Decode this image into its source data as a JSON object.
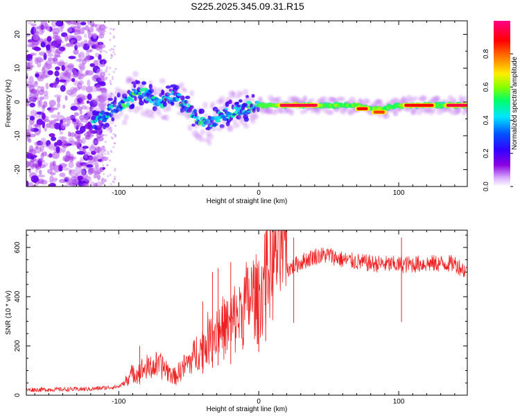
{
  "title": "S225.2025.345.09.31.R15",
  "chart_data": [
    {
      "type": "heatmap",
      "name": "spectrogram",
      "xlabel": "Height of straight line (km)",
      "ylabel": "Frequency (Hz)",
      "xlim": [
        -166,
        149
      ],
      "ylim": [
        -25,
        24
      ],
      "xticks": [
        -100,
        0,
        100
      ],
      "yticks": [
        -20,
        -10,
        0,
        10,
        20
      ],
      "colorbar": {
        "label": "Normalized spectral amplitude",
        "range": [
          0.0,
          1.0
        ],
        "ticks": [
          0.0,
          0.2,
          0.4,
          0.6,
          0.8
        ],
        "colormap": [
          "#ffffff",
          "#8a00e0",
          "#3300ff",
          "#0044ff",
          "#00e5ff",
          "#00ff66",
          "#aaff00",
          "#ffee00",
          "#ff7a00",
          "#ff0000",
          "#ff0088"
        ]
      },
      "ridge": {
        "x": [
          -115,
          -105,
          -95,
          -88,
          -80,
          -70,
          -60,
          -50,
          -40,
          -35,
          -30,
          -20,
          -10,
          0,
          15,
          30,
          50,
          70,
          80,
          85,
          90,
          100,
          115,
          130,
          149
        ],
        "y": [
          -6,
          -2,
          0,
          3,
          2,
          0,
          2,
          -2,
          -6,
          -7,
          -5,
          -3,
          -2,
          -1,
          -1,
          -1,
          -1,
          -1,
          -2,
          -2,
          -2,
          -1,
          -1,
          -1,
          -1
        ]
      },
      "peak_segments": [
        {
          "x_start": 15,
          "x_end": 42,
          "y": -1,
          "value": 0.95
        },
        {
          "x_start": 70,
          "x_end": 78,
          "y": -2,
          "value": 0.9
        },
        {
          "x_start": 82,
          "x_end": 90,
          "y": -3,
          "value": 0.85
        },
        {
          "x_start": 104,
          "x_end": 125,
          "y": -1,
          "value": 0.9
        },
        {
          "x_start": 134,
          "x_end": 149,
          "y": -1,
          "value": 0.95
        }
      ],
      "noise_region": {
        "x_start": -166,
        "x_end": -110,
        "y_start": -25,
        "y_end": 24
      }
    },
    {
      "type": "line",
      "name": "snr",
      "xlabel": "Height of straight line (km)",
      "ylabel": "SNR (10 * v/v)",
      "xlim": [
        -166,
        149
      ],
      "ylim": [
        0,
        670
      ],
      "xticks": [
        -100,
        0,
        100
      ],
      "yticks": [
        0,
        200,
        400,
        600
      ],
      "color": "#ee2222",
      "envelope": {
        "x": [
          -166,
          -120,
          -100,
          -90,
          -80,
          -70,
          -60,
          -50,
          -40,
          -30,
          -20,
          -10,
          -5,
          0,
          5,
          10,
          15,
          20,
          30,
          40,
          50,
          60,
          80,
          100,
          120,
          140,
          149
        ],
        "y": [
          22,
          25,
          35,
          70,
          90,
          100,
          60,
          110,
          160,
          220,
          230,
          300,
          330,
          320,
          400,
          460,
          500,
          520,
          550,
          575,
          580,
          560,
          545,
          540,
          545,
          545,
          510
        ]
      },
      "spikes": [
        {
          "x": -85,
          "y": 200
        },
        {
          "x": -40,
          "y": 380
        },
        {
          "x": -33,
          "y": 500
        },
        {
          "x": -29,
          "y": 515
        },
        {
          "x": -20,
          "y": 540
        },
        {
          "x": 0,
          "y": 520
        },
        {
          "x": 5,
          "y": 665
        },
        {
          "x": 25,
          "y": 640
        },
        {
          "x": 102,
          "y": 640
        }
      ]
    }
  ]
}
